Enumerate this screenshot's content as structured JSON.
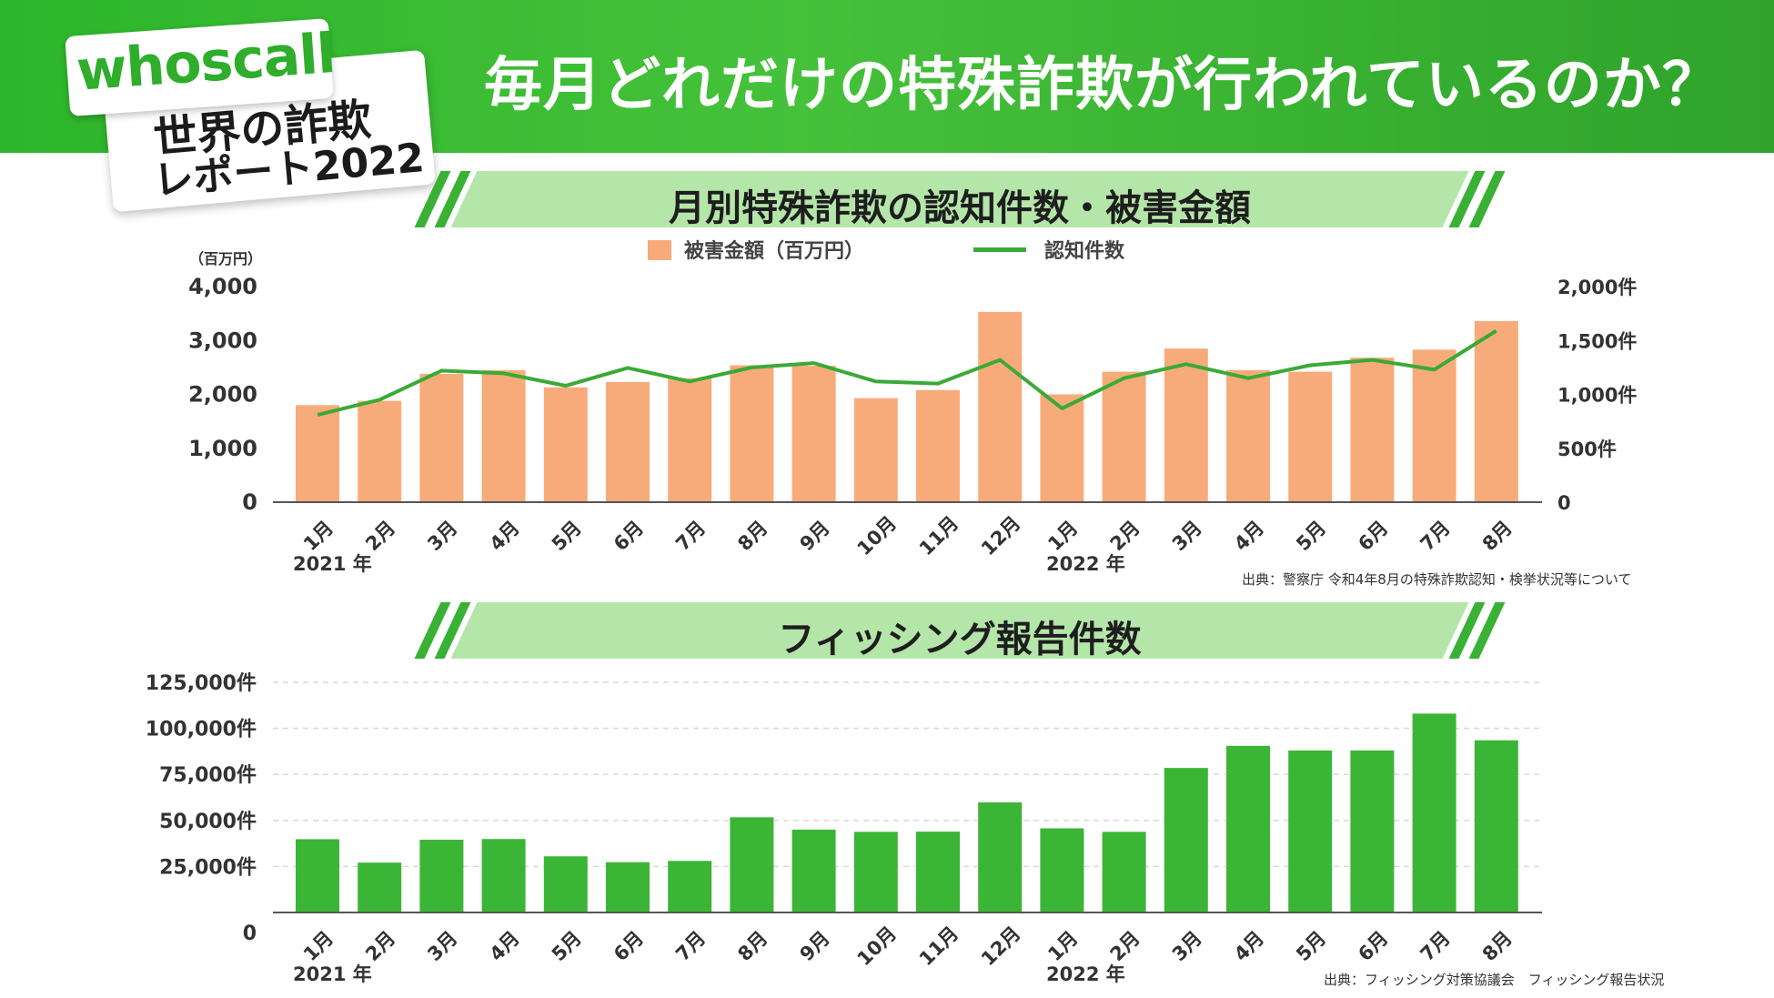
{
  "header": {
    "title": "毎月どれだけの特殊詐欺が行われているのか？",
    "logo_word": "whoscall",
    "logo_line1": "世界の詐欺",
    "logo_line2": "レポート2022",
    "accent": "#3cb935"
  },
  "chart_data": [
    {
      "type": "bar",
      "title": "月別特殊詐欺の認知件数・被害金額",
      "categories": [
        "1月",
        "2月",
        "3月",
        "4月",
        "5月",
        "6月",
        "7月",
        "8月",
        "9月",
        "10月",
        "11月",
        "12月",
        "1月",
        "2月",
        "3月",
        "4月",
        "5月",
        "6月",
        "7月",
        "8月"
      ],
      "year_labels": [
        "2021 年",
        "2022 年"
      ],
      "unit_left": "（百万円）",
      "y_ticks_left": [
        "4,000",
        "3,000",
        "2,000",
        "1,000",
        "0"
      ],
      "y_ticks_right": [
        "2,000件",
        "1,500件",
        "1,000件",
        "500件",
        "0"
      ],
      "ylim_left": [
        0,
        4000
      ],
      "ylim_right": [
        0,
        2000
      ],
      "series": [
        {
          "name": "被害金額（百万円）",
          "kind": "bar",
          "axis": "left",
          "color": "#f8ab7a",
          "values": [
            1800,
            1880,
            2380,
            2450,
            2130,
            2230,
            2300,
            2540,
            2530,
            1930,
            2080,
            3530,
            2000,
            2420,
            2850,
            2450,
            2420,
            2680,
            2830,
            3360
          ]
        },
        {
          "name": "認知件数",
          "kind": "line",
          "axis": "right",
          "color": "#3aaa35",
          "values": [
            810,
            950,
            1220,
            1195,
            1080,
            1245,
            1120,
            1250,
            1290,
            1120,
            1100,
            1320,
            870,
            1150,
            1280,
            1150,
            1270,
            1320,
            1230,
            1590
          ]
        }
      ],
      "source": "出典：警察庁 令和4年8月の特殊詐欺認知・検挙状況等について"
    },
    {
      "type": "bar",
      "title": "フィッシング報告件数",
      "categories": [
        "1月",
        "2月",
        "3月",
        "4月",
        "5月",
        "6月",
        "7月",
        "8月",
        "9月",
        "10月",
        "11月",
        "12月",
        "1月",
        "2月",
        "3月",
        "4月",
        "5月",
        "6月",
        "7月",
        "8月"
      ],
      "year_labels": [
        "2021 年",
        "2022 年"
      ],
      "y_ticks": [
        "125,000件",
        "100,000件",
        "75,000件",
        "50,000件",
        "25,000件",
        "0"
      ],
      "ylim": [
        0,
        125000
      ],
      "series": [
        {
          "name": "フィッシング報告件数",
          "color": "#3bb535",
          "values": [
            39800,
            27100,
            39500,
            39900,
            30500,
            27300,
            28000,
            51700,
            45000,
            43800,
            43900,
            59800,
            45700,
            43800,
            78500,
            90500,
            88000,
            88000,
            108000,
            93500
          ]
        }
      ],
      "source": "出典：フィッシング対策協議会　フィッシング報告状況"
    }
  ]
}
